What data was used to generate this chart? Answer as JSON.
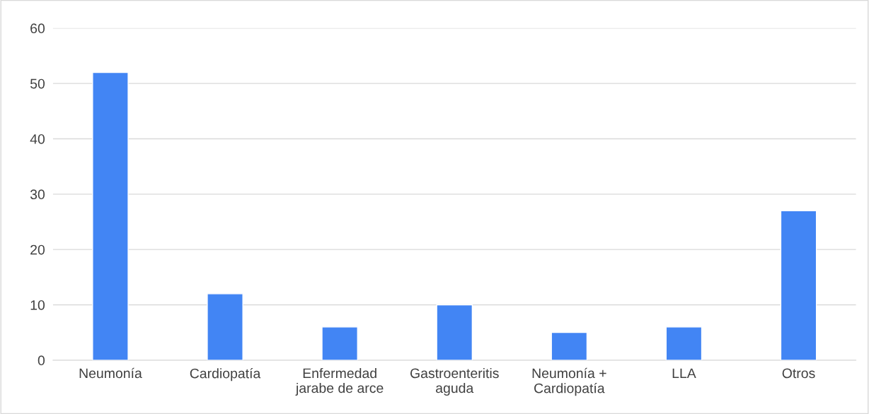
{
  "chart_data": {
    "type": "bar",
    "categories": [
      "Neumonía",
      "Cardiopatía",
      "Enfermedad\njarabe de arce",
      "Gastroenteritis\naguda",
      "Neumonía +\nCardiopatía",
      "LLA",
      "Otros"
    ],
    "values": [
      52,
      12,
      6,
      10,
      5,
      6,
      27
    ],
    "color": "#4285f4",
    "ylim": [
      0,
      60
    ],
    "yticks": [
      0,
      10,
      20,
      30,
      40,
      50,
      60
    ],
    "grid": "y"
  }
}
